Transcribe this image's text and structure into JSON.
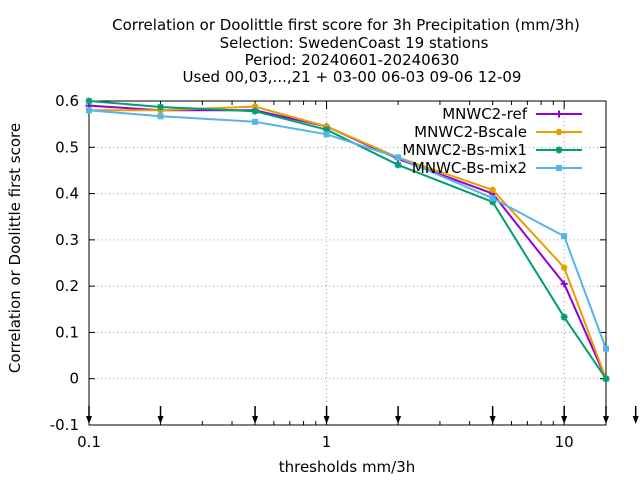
{
  "chart_data": {
    "type": "line",
    "title_lines": [
      "Correlation or Doolittle first score  for 3h Precipitation (mm/3h)",
      "Selection: SwedenCoast      19 stations",
      "Period: 20240601-20240630",
      "Used 00,03,...,21 + 03-00 06-03 09-06 12-09"
    ],
    "xlabel": "thresholds mm/3h",
    "ylabel": "Correlation or Doolittle first score",
    "x_scale": "log",
    "xlim": [
      0.1,
      15
    ],
    "ylim": [
      -0.1,
      0.6
    ],
    "x_ticks": [
      0.1,
      1,
      10
    ],
    "x_tick_labels": [
      "0.1",
      "1",
      "10"
    ],
    "y_ticks": [
      -0.1,
      0,
      0.1,
      0.2,
      0.3,
      0.4,
      0.5,
      0.6
    ],
    "y_tick_labels": [
      "-0.1",
      "0",
      "0.1",
      "0.2",
      "0.3",
      "0.4",
      "0.5",
      "0.6"
    ],
    "threshold_markers": [
      0.1,
      0.2,
      0.5,
      1,
      2,
      5,
      10,
      15,
      20
    ],
    "grid": true,
    "legend_position": "top-right",
    "x": [
      0.1,
      0.2,
      0.5,
      1,
      2,
      5,
      10,
      15
    ],
    "series": [
      {
        "name": "MNWC2-ref",
        "color": "#9400d3",
        "marker": "plus",
        "values": [
          0.59,
          0.58,
          0.58,
          0.545,
          0.475,
          0.4,
          0.205,
          0.0
        ]
      },
      {
        "name": "MNWC2-Bscale",
        "color": "#e69f00",
        "marker": "circle",
        "values": [
          0.58,
          0.58,
          0.588,
          0.545,
          0.478,
          0.408,
          0.24,
          0.0
        ]
      },
      {
        "name": "MNWC2-Bs-mix1",
        "color": "#009e73",
        "marker": "star",
        "values": [
          0.6,
          0.587,
          0.578,
          0.538,
          0.462,
          0.382,
          0.133,
          0.0
        ]
      },
      {
        "name": "MNWC-Bs-mix2",
        "color": "#56b4e9",
        "marker": "box",
        "values": [
          0.58,
          0.567,
          0.555,
          0.528,
          0.478,
          0.39,
          0.308,
          0.065
        ]
      }
    ]
  }
}
